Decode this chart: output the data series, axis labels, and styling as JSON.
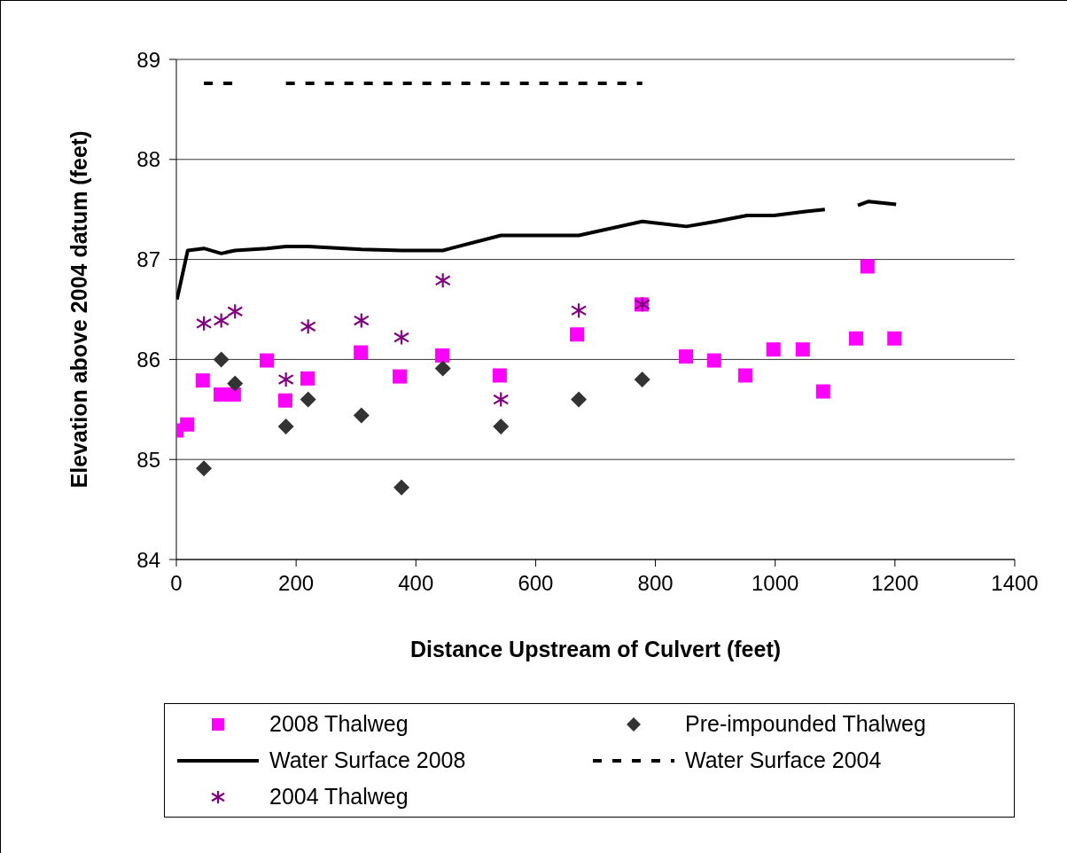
{
  "chart_data": {
    "type": "scatter",
    "xlabel": "Distance Upstream of Culvert (feet)",
    "ylabel": "Elevation above 2004 datum (feet)",
    "xlim": [
      0,
      1400
    ],
    "xticks": [
      0,
      200,
      400,
      600,
      800,
      1000,
      1200,
      1400
    ],
    "ylim": [
      84,
      89
    ],
    "yticks": [
      84,
      85,
      86,
      87,
      88,
      89
    ],
    "grid": "y",
    "legend": "bottom",
    "series": [
      {
        "name": "2008 Thalweg",
        "marker": "square",
        "color": "#ff00ff",
        "x": [
          0,
          18,
          44,
          74,
          96,
          151,
          182,
          219,
          308,
          373,
          444,
          540,
          669,
          777,
          851,
          898,
          950,
          997,
          1046,
          1080,
          1135,
          1154,
          1199
        ],
        "values": [
          85.29,
          85.35,
          85.79,
          85.65,
          85.65,
          85.99,
          85.59,
          85.81,
          86.07,
          85.83,
          86.04,
          85.84,
          86.25,
          86.55,
          86.03,
          85.99,
          85.84,
          86.1,
          86.1,
          85.68,
          86.21,
          86.93,
          86.21
        ]
      },
      {
        "name": "Pre-impounded Thalweg",
        "marker": "diamond",
        "color": "#333333",
        "x": [
          46,
          75,
          98,
          183,
          220,
          309,
          376,
          445,
          542,
          672,
          778
        ],
        "values": [
          84.91,
          86.0,
          85.76,
          85.33,
          85.6,
          85.44,
          84.72,
          85.91,
          85.33,
          85.6,
          85.8
        ]
      },
      {
        "name": "Water Surface 2008",
        "type": "line",
        "line_style": "solid",
        "marker": "none",
        "color": "#000000",
        "x": [
          1,
          19,
          46,
          75,
          98,
          151,
          183,
          220,
          309,
          376,
          445,
          542,
          672,
          778,
          852,
          901,
          953,
          998,
          1051,
          1083,
          1110,
          1138,
          1156,
          1202
        ],
        "values": [
          86.6,
          87.09,
          87.11,
          87.06,
          87.09,
          87.11,
          87.13,
          87.13,
          87.1,
          87.09,
          87.09,
          87.24,
          87.24,
          87.38,
          87.33,
          87.38,
          87.44,
          87.44,
          87.48,
          87.5,
          null,
          87.54,
          87.58,
          87.55
        ]
      },
      {
        "name": "Water Surface 2004",
        "type": "line",
        "line_style": "dashed",
        "marker": "none",
        "color": "#000000",
        "x": [
          46,
          96,
          140,
          183,
          778
        ],
        "values": [
          88.76,
          88.76,
          null,
          88.76,
          88.76
        ]
      },
      {
        "name": "2004 Thalweg",
        "marker": "cross",
        "color": "#800080",
        "x": [
          46,
          75,
          98,
          183,
          220,
          309,
          376,
          445,
          542,
          672,
          778
        ],
        "values": [
          86.36,
          86.39,
          86.48,
          85.8,
          86.33,
          86.39,
          86.22,
          86.79,
          85.6,
          86.49,
          86.55
        ]
      }
    ]
  }
}
